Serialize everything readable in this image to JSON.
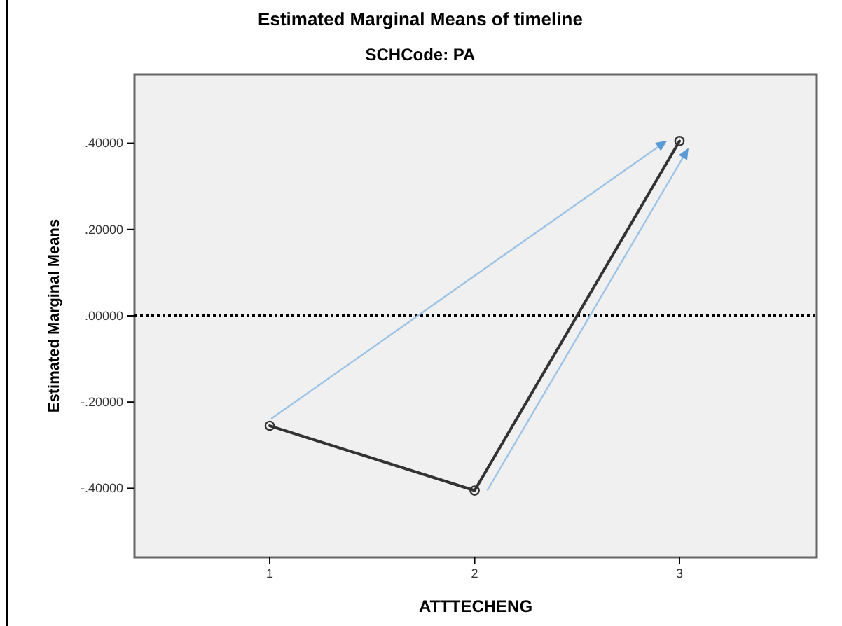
{
  "chart_data": {
    "type": "line",
    "title": "Estimated Marginal Means of timeline",
    "subtitle": "SCHCode: PA",
    "xlabel": "ATTTECHENG",
    "ylabel": "Estimated Marginal Means",
    "x": [
      1,
      2,
      3
    ],
    "series": [
      {
        "color": "#333333",
        "values": [
          -0.255,
          -0.405,
          0.405
        ]
      }
    ],
    "xlim": [
      0.34,
      3.67
    ],
    "xticks": [
      1,
      2,
      3
    ],
    "ylim": [
      -0.56,
      0.56
    ],
    "yticks": [
      {
        "value": 0.4,
        "label": ".40000"
      },
      {
        "value": 0.2,
        "label": ".20000"
      },
      {
        "value": 0,
        "label": ".00000"
      },
      {
        "value": -0.2,
        "label": "-.20000"
      },
      {
        "value": -0.4,
        "label": "-.40000"
      }
    ],
    "ref_lines": [
      {
        "axis": "y",
        "value": 0,
        "color": "#000000",
        "line_style": "dotted"
      }
    ],
    "marker": "circle",
    "line_style": "solid",
    "grid": false
  }
}
